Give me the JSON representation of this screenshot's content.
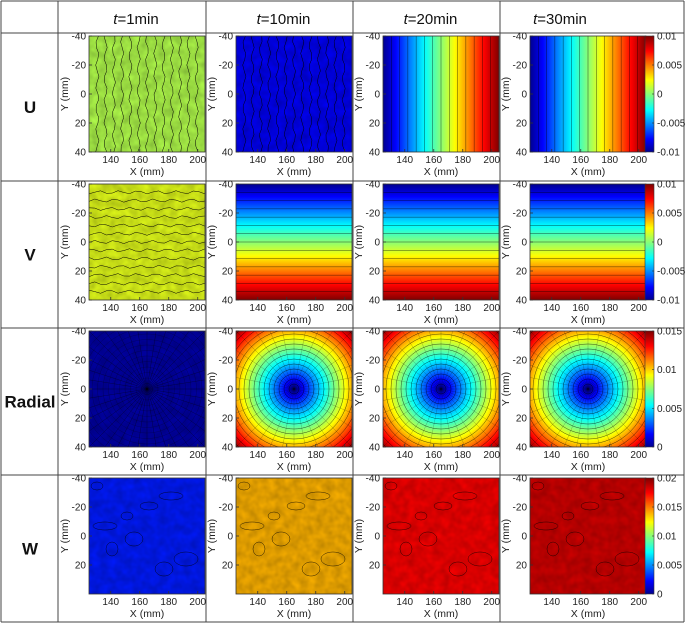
{
  "chart_data": {
    "type": "heatmap",
    "columns": [
      "t=1min",
      "t=10min",
      "t=20min",
      "t=30min"
    ],
    "column_labels": [
      {
        "var": "t",
        "text": "=1min"
      },
      {
        "var": "t",
        "text": "=10min"
      },
      {
        "var": "t",
        "text": "=20min"
      },
      {
        "var": "t",
        "text": "=30min"
      }
    ],
    "rows": [
      {
        "label": "U",
        "field": "U",
        "colorbar": {
          "min": -0.01,
          "max": 0.01,
          "ticks": [
            "0.01",
            "0.005",
            "0",
            "-0.005",
            "-0.01"
          ]
        },
        "levels": [
          0.55,
          0.12,
          1.0,
          1.0
        ],
        "pattern": "horizontal-gradient"
      },
      {
        "label": "V",
        "field": "V",
        "colorbar": {
          "min": -0.01,
          "max": 0.01,
          "ticks": [
            "0.01",
            "0.005",
            "0",
            "-0.005",
            "-0.01"
          ]
        },
        "levels": [
          0.6,
          1.0,
          1.0,
          1.0
        ],
        "pattern": "vertical-gradient"
      },
      {
        "label": "Radial",
        "field": "Radial",
        "colorbar": {
          "min": 0,
          "max": 0.015,
          "ticks": [
            "0.015",
            "0.01",
            "0.005",
            "0"
          ]
        },
        "levels": [
          0.02,
          0.6,
          1.0,
          1.0
        ],
        "pattern": "radial"
      },
      {
        "label": "W",
        "field": "W",
        "colorbar": {
          "min": 0,
          "max": 0.02,
          "ticks": [
            "0.02",
            "0.015",
            "0.01",
            "0.005",
            "0"
          ]
        },
        "levels": [
          0.15,
          0.7,
          0.88,
          0.92
        ],
        "pattern": "uniform"
      }
    ],
    "x_axis": {
      "label": "X (mm)",
      "range": [
        125,
        205
      ],
      "ticks": [
        "140",
        "160",
        "180",
        "200"
      ]
    },
    "y_axis": {
      "label": "Y (mm)",
      "range": [
        -40,
        40
      ],
      "ticks_full": [
        "-40",
        "-20",
        "0",
        "20",
        "40"
      ],
      "ticks_w_row": [
        "-40",
        "-20",
        "0",
        "20"
      ]
    },
    "colormap": "jet"
  }
}
